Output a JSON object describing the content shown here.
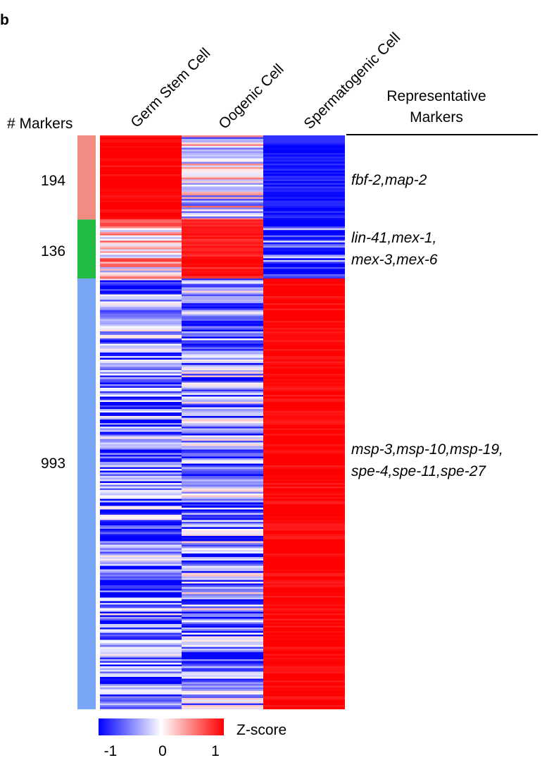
{
  "panel_label": "b",
  "markers_header": "# Markers",
  "representative_header_line1": "Representative",
  "representative_header_line2": "Markers",
  "chart_data": {
    "type": "heatmap",
    "columns": [
      "Germ Stem Cell",
      "Oogenic Cell",
      "Spermatogenic Cell"
    ],
    "row_groups": [
      {
        "count": 194,
        "color": "#f28b82",
        "representative_markers_line1": "fbf-2,map-2",
        "representative_markers_line2": "",
        "mean_zscore": [
          1.0,
          -0.1,
          -0.9
        ]
      },
      {
        "count": 136,
        "color": "#22bb44",
        "representative_markers_line1": "lin-41,mex-1,",
        "representative_markers_line2": "mex-3,mex-6",
        "mean_zscore": [
          0.1,
          0.9,
          -0.8
        ]
      },
      {
        "count": 993,
        "color": "#7aa7f5",
        "representative_markers_line1": "msp-3,msp-10,msp-19,",
        "representative_markers_line2": "spe-4,spe-11,spe-27",
        "mean_zscore": [
          -0.55,
          -0.45,
          1.0
        ]
      }
    ],
    "colorbar": {
      "label": "Z-score",
      "min": -1,
      "max": 1,
      "ticks": [
        "-1",
        "0",
        "1"
      ],
      "low_color": "#0000ff",
      "mid_color": "#ffffff",
      "high_color": "#ff0000"
    }
  }
}
